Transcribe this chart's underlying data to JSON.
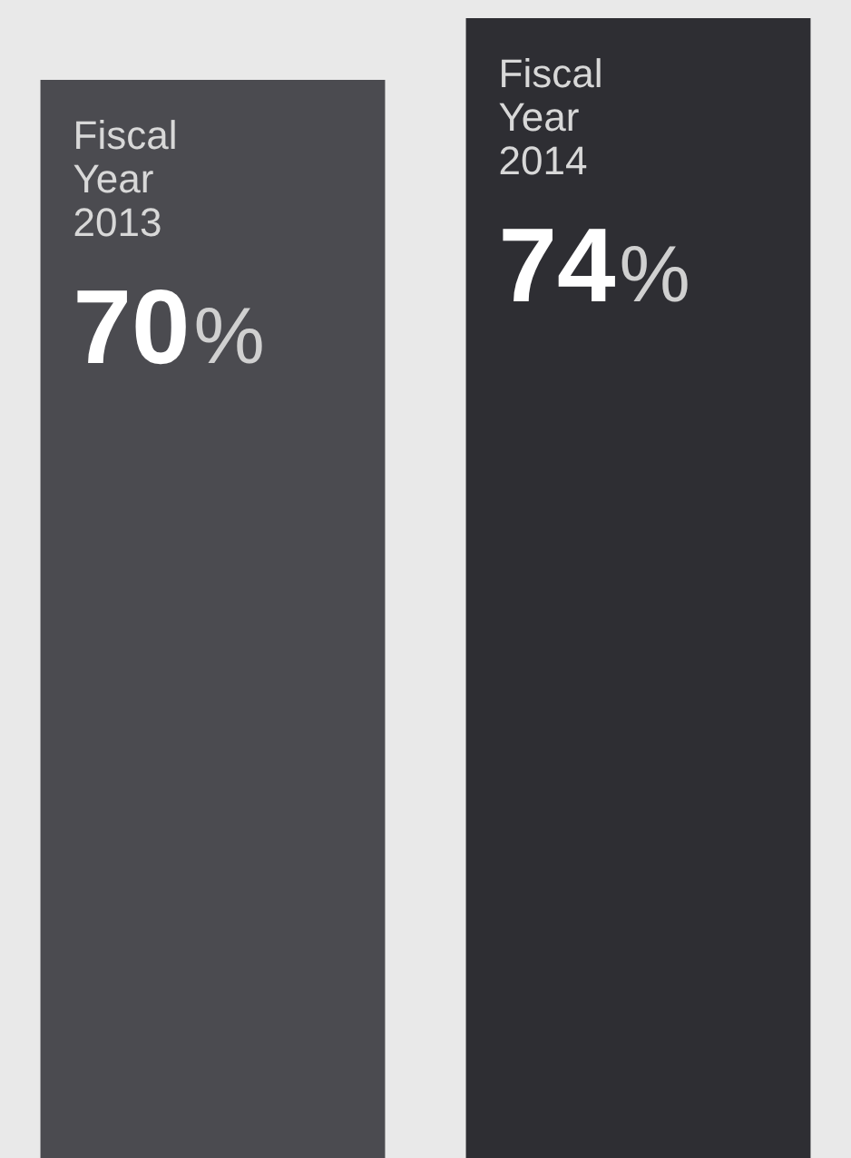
{
  "chart_data": {
    "type": "bar",
    "categories": [
      "Fiscal Year 2013",
      "Fiscal Year 2014"
    ],
    "values": [
      70,
      74
    ],
    "colors": [
      "#4b4b50",
      "#2e2e33"
    ],
    "value_labels": [
      "70%",
      "74%"
    ],
    "legend": false,
    "tick_labels": false
  }
}
